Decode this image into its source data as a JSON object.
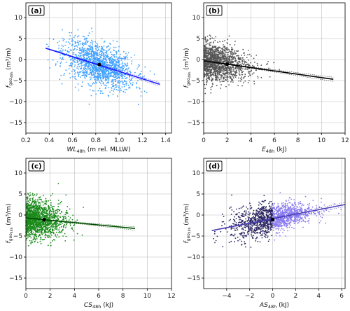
{
  "chart_data": [
    {
      "type": "scatter",
      "panel_label": "(a)",
      "xlabel_main": "WL",
      "xlabel_sub": "48h",
      "xlabel_rest": " (m rel. MLLW)",
      "ylabel": "f",
      "ylabel_sub": "geo",
      "ylabel_sub2": "48h",
      "ylabel_rest": " (m³/m)",
      "xlim": [
        0.2,
        1.45
      ],
      "ylim": [
        -17.5,
        13.5
      ],
      "xticks": [
        0.2,
        0.4,
        0.6,
        0.8,
        1.0,
        1.2,
        1.4
      ],
      "xtick_labels": [
        "0.2",
        "0.4",
        "0.6",
        "0.8",
        "1.0",
        "1.2",
        "1.4"
      ],
      "yticks": [
        -15,
        -10,
        -5,
        0,
        5,
        10
      ],
      "ytick_labels": [
        "−15",
        "−10",
        "−5",
        "0",
        "5",
        "10"
      ],
      "grid": true,
      "colors": {
        "points": "#3fa0ff",
        "line": "#1a1aff"
      },
      "cloud": {
        "x_range": [
          0.38,
          1.35
        ],
        "x_center": 0.83,
        "x_spread": 0.15,
        "y_noise": 2.5
      },
      "trend": {
        "x": [
          0.37,
          1.35
        ],
        "y": [
          2.7,
          -5.9
        ]
      },
      "mean_point": {
        "x": 0.83,
        "y": -1.2
      }
    },
    {
      "type": "scatter",
      "panel_label": "(b)",
      "xlabel_main": "E",
      "xlabel_sub": "48h",
      "xlabel_rest": " (kJ)",
      "ylabel": "f",
      "ylabel_sub": "geo",
      "ylabel_sub2": "48h",
      "ylabel_rest": " (m³/m)",
      "xlim": [
        0,
        12
      ],
      "ylim": [
        -17.5,
        13.5
      ],
      "xticks": [
        0,
        2,
        4,
        6,
        8,
        10,
        12
      ],
      "xtick_labels": [
        "0",
        "2",
        "4",
        "6",
        "8",
        "10",
        "12"
      ],
      "yticks": [
        -15,
        -10,
        -5,
        0,
        5,
        10
      ],
      "ytick_labels": [
        "−15",
        "−10",
        "−5",
        "0",
        "5",
        "10"
      ],
      "grid": true,
      "colors": {
        "points": "#555555",
        "line": "#000000"
      },
      "cloud": {
        "x_range": [
          0,
          11
        ],
        "x_center": 1.5,
        "x_spread": 1.8,
        "y_noise": 2.3
      },
      "trend": {
        "x": [
          0,
          11
        ],
        "y": [
          -0.3,
          -4.7
        ]
      },
      "mean_point": {
        "x": 2.0,
        "y": -1.1
      }
    },
    {
      "type": "scatter",
      "panel_label": "(c)",
      "xlabel_main": "CS",
      "xlabel_sub": "48h",
      "xlabel_rest": " (kJ)",
      "ylabel": "f",
      "ylabel_sub": "geo",
      "ylabel_sub2": "48h",
      "ylabel_rest": " (m³/m)",
      "xlim": [
        0,
        12
      ],
      "ylim": [
        -17.5,
        13.5
      ],
      "xticks": [
        0,
        2,
        4,
        6,
        8,
        10,
        12
      ],
      "xtick_labels": [
        "0",
        "2",
        "4",
        "6",
        "8",
        "10",
        "12"
      ],
      "yticks": [
        -15,
        -10,
        -5,
        0,
        5,
        10
      ],
      "ytick_labels": [
        "−15",
        "−10",
        "−5",
        "0",
        "5",
        "10"
      ],
      "grid": true,
      "colors": {
        "points": "#1a8a1a",
        "line": "#004d00"
      },
      "cloud": {
        "x_range": [
          0,
          9
        ],
        "x_center": 1.2,
        "x_spread": 1.4,
        "y_noise": 2.4
      },
      "trend": {
        "x": [
          0,
          9
        ],
        "y": [
          -0.7,
          -3.2
        ]
      },
      "mean_point": {
        "x": 1.5,
        "y": -1.1
      }
    },
    {
      "type": "scatter",
      "panel_label": "(d)",
      "xlabel_main": "AS",
      "xlabel_sub": "48h",
      "xlabel_rest": " (kJ)",
      "ylabel": "f",
      "ylabel_sub": "geo",
      "ylabel_sub2": "48h",
      "ylabel_rest": " (m³/m)",
      "xlim": [
        -6,
        6.3
      ],
      "ylim": [
        -17.5,
        13.5
      ],
      "xticks": [
        -4,
        -2,
        0,
        2,
        4,
        6
      ],
      "xtick_labels": [
        "−4",
        "−2",
        "0",
        "2",
        "4",
        "6"
      ],
      "yticks": [
        -15,
        -10,
        -5,
        0,
        5,
        10
      ],
      "ytick_labels": [
        "−15",
        "−10",
        "−5",
        "0",
        "5",
        "10"
      ],
      "grid": true,
      "colors": {
        "points_neg": "#2a2560",
        "points_pos": "#8a7cf0",
        "line": "#4a3fb5"
      },
      "cloud": {
        "x_range": [
          -5.2,
          6.2
        ],
        "x_center": 0,
        "x_spread": 1.8,
        "y_noise": 2.3
      },
      "trend": {
        "x": [
          -5.3,
          6.3
        ],
        "y": [
          -3.7,
          2.5
        ]
      },
      "mean_point": {
        "x": 0.0,
        "y": -1.1
      }
    }
  ]
}
